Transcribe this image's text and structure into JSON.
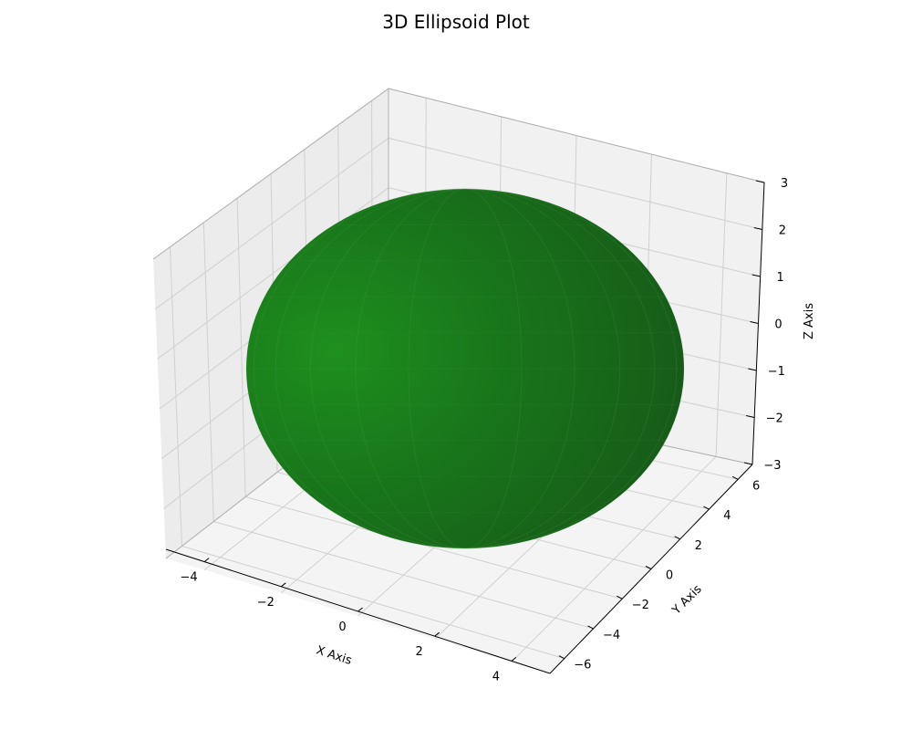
{
  "chart_data": {
    "type": "surface3d",
    "title": "3D Ellipsoid Plot",
    "xlabel": "X Axis",
    "ylabel": "Y Axis",
    "zlabel": "Z Axis",
    "xlim": [
      -5,
      5
    ],
    "ylim": [
      -7,
      7
    ],
    "zlim": [
      -3,
      3
    ],
    "x_ticks": [
      -4,
      -2,
      0,
      2,
      4
    ],
    "y_ticks": [
      -6,
      -4,
      -2,
      0,
      2,
      4,
      6
    ],
    "z_ticks": [
      -3,
      -2,
      -1,
      0,
      1,
      2,
      3
    ],
    "x_tick_labels": [
      "−4",
      "−2",
      "0",
      "2",
      "4"
    ],
    "y_tick_labels": [
      "−6",
      "−4",
      "−2",
      "0",
      "2",
      "4",
      "6"
    ],
    "z_tick_labels": [
      "−3",
      "−2",
      "−1",
      "0",
      "1",
      "2",
      "3"
    ],
    "surface": {
      "shape": "ellipsoid",
      "center": [
        0,
        0,
        0
      ],
      "semi_axes": [
        3,
        5,
        2
      ],
      "color": "#1a8a1a"
    },
    "grid": true
  }
}
